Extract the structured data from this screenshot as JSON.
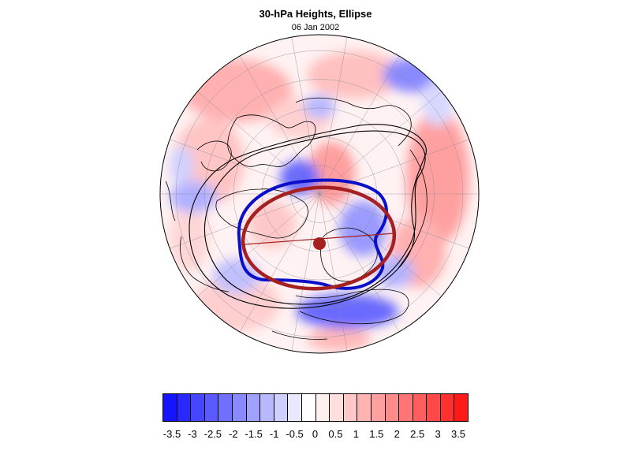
{
  "title": "30-hPa Heights, Ellipse",
  "subtitle": "06 Jan 2002",
  "colorbar": {
    "labels": [
      "-3.5",
      "-3",
      "-2.5",
      "-2",
      "-1.5",
      "-1",
      "-0.5",
      "0",
      "0.5",
      "1",
      "1.5",
      "2",
      "2.5",
      "3",
      "3.5"
    ],
    "colors": [
      "#1414ff",
      "#2828ff",
      "#4646ff",
      "#5a5aff",
      "#7070ff",
      "#8a8aff",
      "#a0a0ff",
      "#b8b8ff",
      "#d0d0ff",
      "#e8e8ff",
      "#ffffff",
      "#fff0f0",
      "#ffdede",
      "#ffc8c8",
      "#ffb4b4",
      "#ffa0a0",
      "#ff8a8a",
      "#ff7474",
      "#ff5e5e",
      "#ff4848",
      "#ff3030",
      "#ff1a1a"
    ]
  },
  "colors": {
    "ellipse": "#a52020",
    "vortex_contour": "#0a10c8",
    "outer_contour": "#000000",
    "positive": "#ff5050",
    "negative": "#5050ff"
  }
}
